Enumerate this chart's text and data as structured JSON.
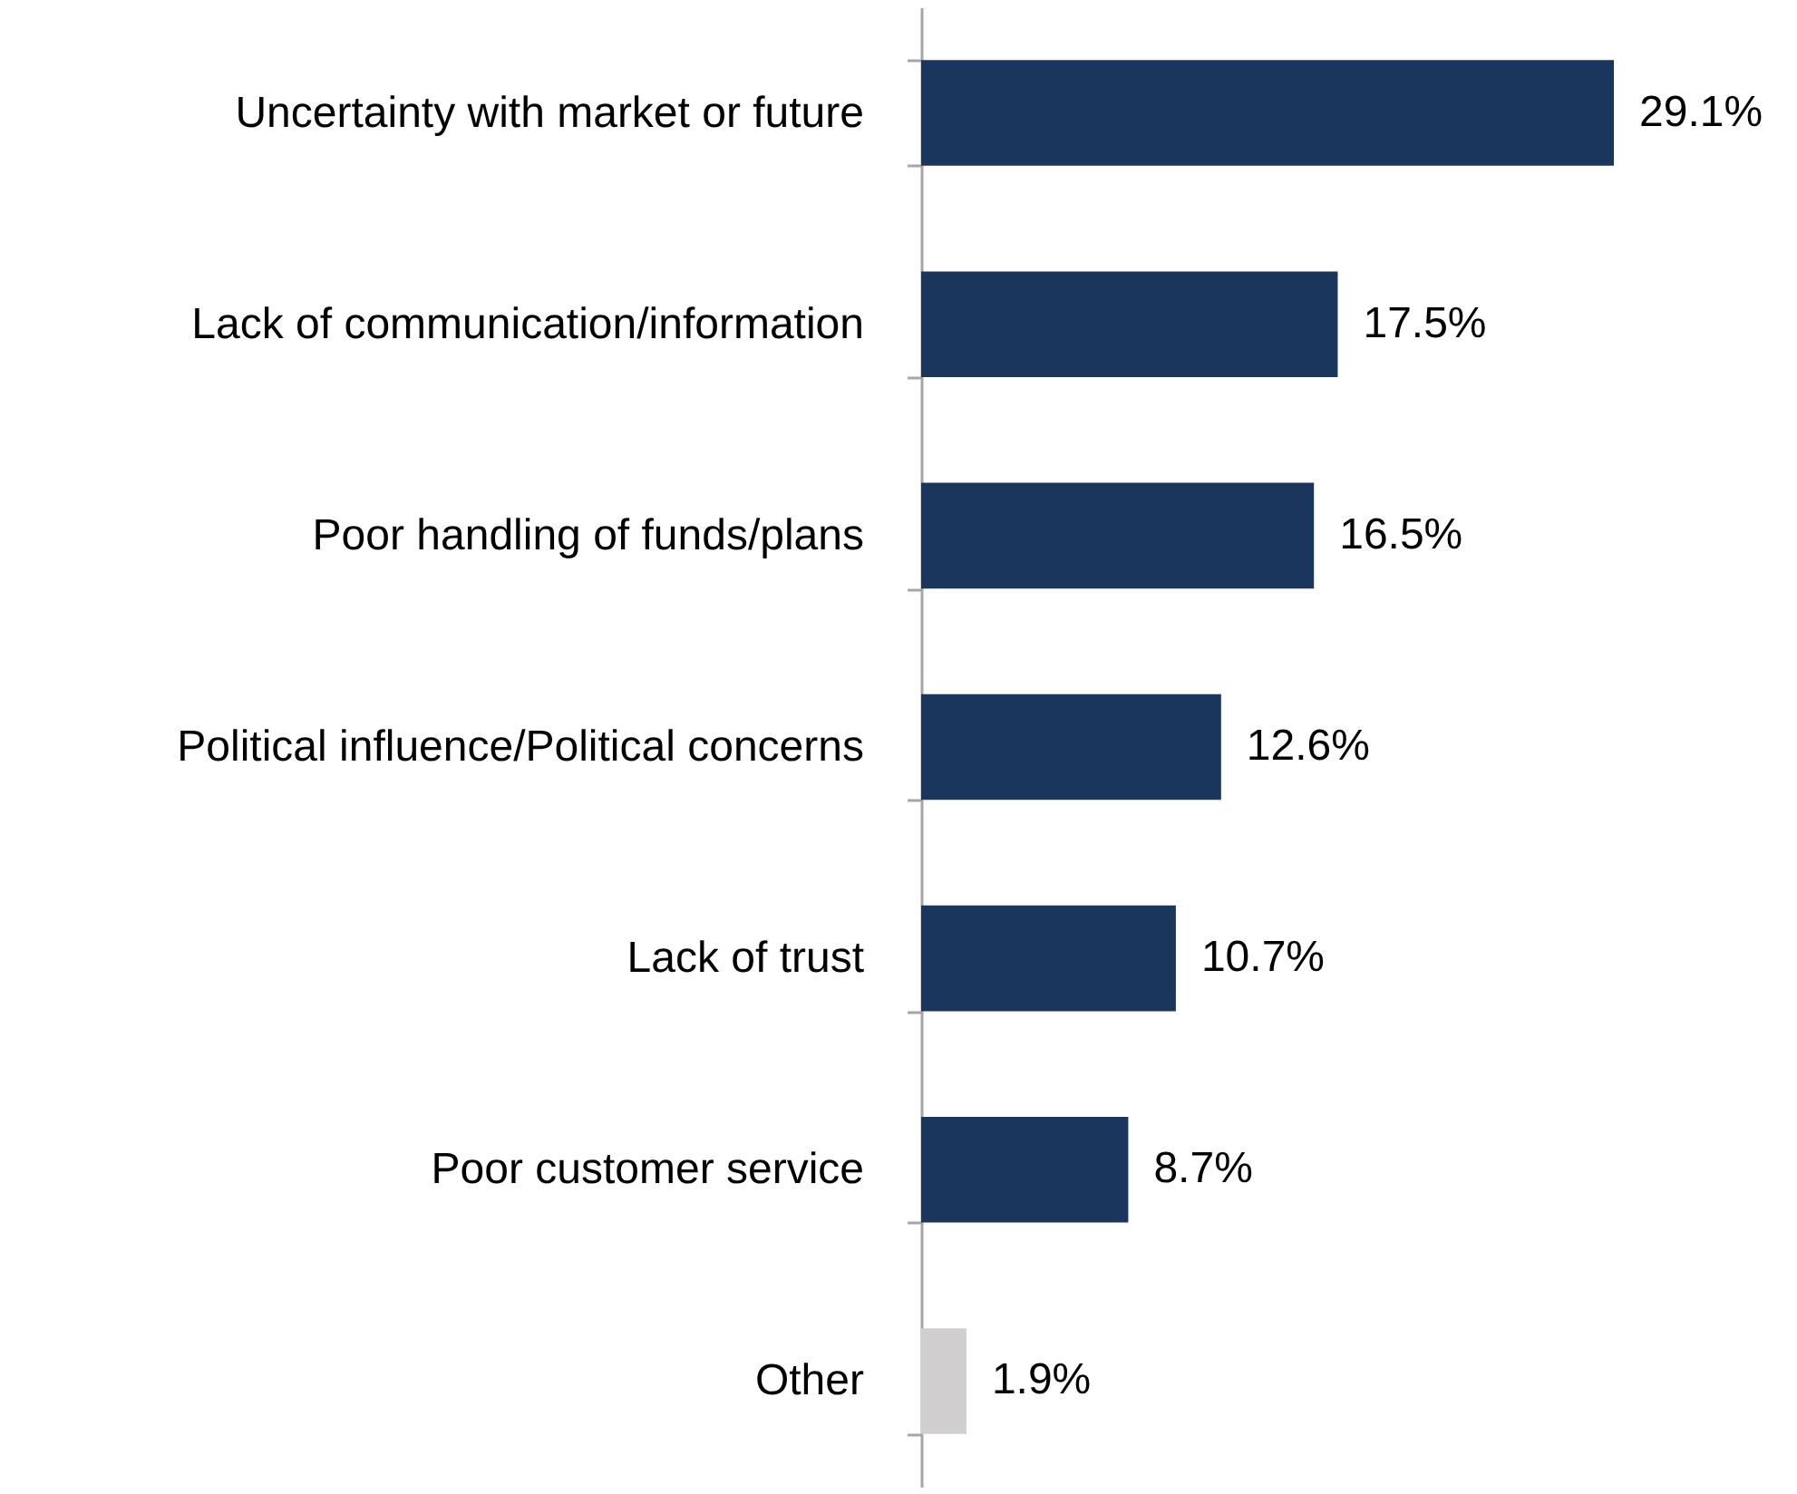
{
  "chart_data": {
    "type": "bar",
    "orientation": "horizontal",
    "categories": [
      "Uncertainty with market or future",
      "Lack of communication/information",
      "Poor handling of funds/plans",
      "Political influence/Political concerns",
      "Lack of trust",
      "Poor customer service",
      "Other"
    ],
    "values": [
      29.1,
      17.5,
      16.5,
      12.6,
      10.7,
      8.7,
      1.9
    ],
    "colors": [
      "#1b365d",
      "#1b365d",
      "#1b365d",
      "#1b365d",
      "#1b365d",
      "#1b365d",
      "#d0cece"
    ],
    "value_labels": [
      "29.1%",
      "17.5%",
      "16.5%",
      "12.6%",
      "10.7%",
      "8.7%",
      "1.9%"
    ]
  }
}
